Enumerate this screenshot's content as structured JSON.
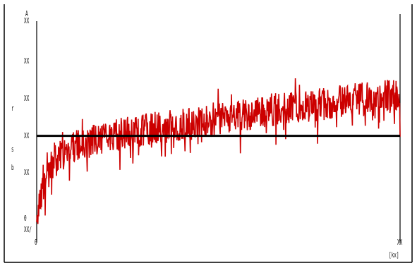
{
  "chart_data": {
    "type": "line",
    "title": "",
    "xlabel": "",
    "ylabel": "",
    "x_tick_labels": [
      {
        "text": "0",
        "value": 0
      },
      {
        "text": "XX",
        "value": 1
      }
    ],
    "x_unit_label": "[kx]",
    "y_tick_labels": [
      {
        "text": "XX",
        "value": 1.5
      },
      {
        "text": "XX",
        "value": 1.0
      },
      {
        "text": "XX",
        "value": 0.5
      },
      {
        "text": "XX",
        "value": 0.0
      }
    ],
    "y_axis_fragments": [
      "A",
      "r",
      "s",
      "b"
    ],
    "y_left_fragments": [
      "0",
      "XX",
      "0",
      "XX/"
    ],
    "reference_line": {
      "y": 0.5,
      "color": "#000000"
    },
    "xlim": [
      0,
      1
    ],
    "ylim": [
      -0.9,
      1.95
    ],
    "grid": false,
    "legend": "none",
    "series": [
      {
        "color": "#cc0000",
        "trend": [
          [
            0.0,
            -0.7
          ],
          [
            0.01,
            -0.3
          ],
          [
            0.03,
            0.05
          ],
          [
            0.05,
            0.2
          ],
          [
            0.08,
            0.3
          ],
          [
            0.12,
            0.4
          ],
          [
            0.18,
            0.45
          ],
          [
            0.25,
            0.55
          ],
          [
            0.35,
            0.62
          ],
          [
            0.45,
            0.68
          ],
          [
            0.55,
            0.78
          ],
          [
            0.65,
            0.85
          ],
          [
            0.75,
            0.9
          ],
          [
            0.85,
            0.98
          ],
          [
            0.95,
            1.05
          ],
          [
            1.0,
            1.05
          ]
        ],
        "noise_amplitude": 0.22,
        "samples": 900
      }
    ]
  }
}
